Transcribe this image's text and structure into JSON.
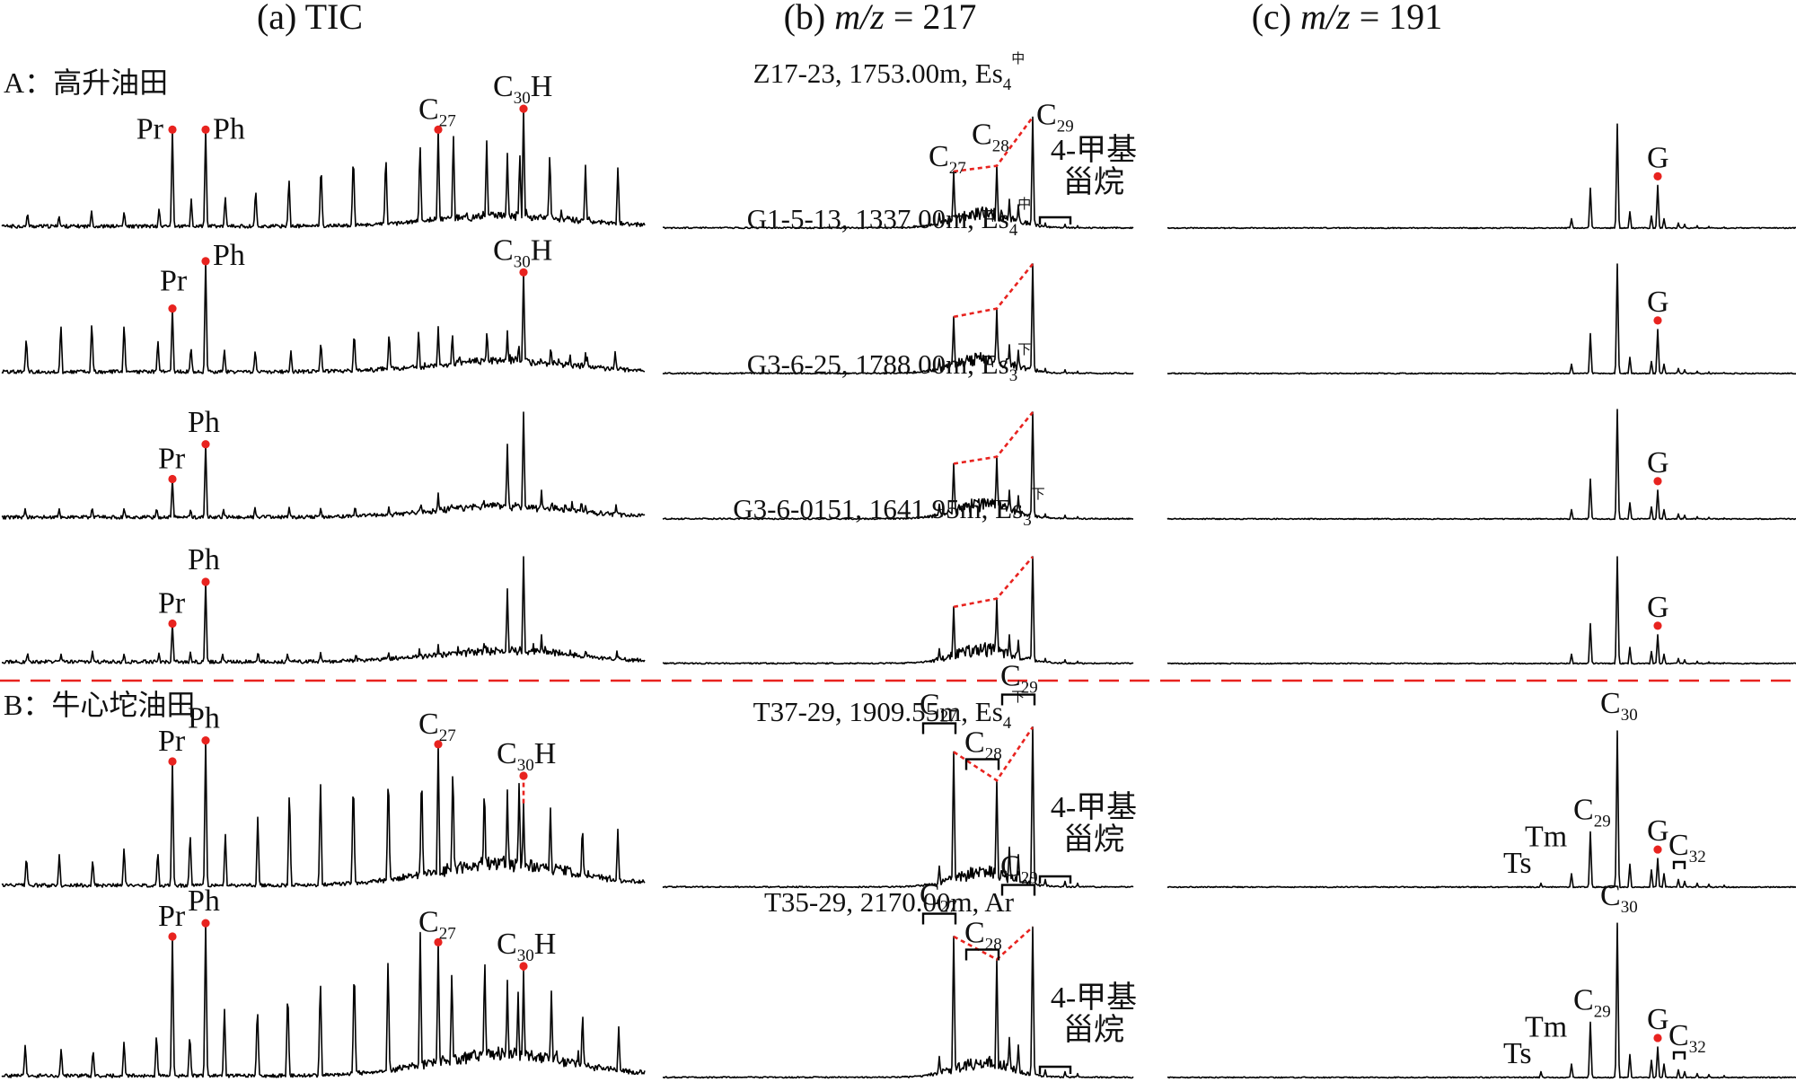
{
  "chart_data": {
    "type": "line",
    "panels": [
      {
        "id": "a",
        "label_prefix": "(a) ",
        "label_main": "TIC",
        "label_suffix": ""
      },
      {
        "id": "b",
        "label_prefix": "(b) ",
        "label_main": "m/z",
        "label_suffix": " = 217"
      },
      {
        "id": "c",
        "label_prefix": "(c) ",
        "label_main": "m/z",
        "label_suffix": " = 191"
      }
    ],
    "sections": [
      {
        "id": "A",
        "label": "A：高升油田"
      },
      {
        "id": "B",
        "label": "B：牛心坨油田"
      }
    ],
    "peak_labels": {
      "Pr": "Pr",
      "Ph": "Ph",
      "C": "C",
      "H": "H",
      "G": "G",
      "Ts": "Ts",
      "Tm": "Tm",
      "n27": "27",
      "n28": "28",
      "n29": "29",
      "n30": "30",
      "n32": "32",
      "methyl_line1": "4-甲基",
      "methyl_line2": "甾烷"
    },
    "samples": [
      {
        "section": "A",
        "well": "Z17-23",
        "depth": "1753.00m",
        "fm": "Es",
        "fm_sub": "4",
        "fm_sup": "中",
        "TIC": {
          "Pr": 0.72,
          "Ph": 0.72,
          "C27": 0.72,
          "C30H": 0.87
        },
        "m217": {
          "C27": 0.42,
          "C28": 0.46,
          "C29": 0.81
        },
        "m191": {
          "G": 0.32,
          "C30": 0.76
        }
      },
      {
        "section": "A",
        "well": "G1-5-13",
        "depth": "1337.00m",
        "fm": "Es",
        "fm_sub": "4",
        "fm_sup": "中",
        "TIC": {
          "Pr": 0.48,
          "Ph": 0.82,
          "C27": 0.35,
          "C30H": 0.74
        },
        "m217": {
          "C27": 0.42,
          "C28": 0.48,
          "C29": 0.8
        },
        "m191": {
          "G": 0.33,
          "C30": 0.8
        }
      },
      {
        "section": "A",
        "well": "G3-6-25",
        "depth": "1788.00m",
        "fm": "Es",
        "fm_sub": "3",
        "fm_sup": "下",
        "TIC": {
          "Pr": 0.3,
          "Ph": 0.55,
          "C27": 0.2,
          "C30H": 0.78
        },
        "m217": {
          "C27": 0.41,
          "C28": 0.46,
          "C29": 0.78
        },
        "m191": {
          "G": 0.22,
          "C30": 0.8
        }
      },
      {
        "section": "A",
        "well": "G3-6-0151",
        "depth": "1641.95m",
        "fm": "Es",
        "fm_sub": "3",
        "fm_sup": "下",
        "TIC": {
          "Pr": 0.3,
          "Ph": 0.6,
          "C27": 0.15,
          "C30H": 0.78
        },
        "m217": {
          "C27": 0.42,
          "C28": 0.48,
          "C29": 0.78
        },
        "m191": {
          "G": 0.22,
          "C30": 0.78
        }
      },
      {
        "section": "B",
        "well": "T37-29",
        "depth": "1909.55m",
        "fm": "Es",
        "fm_sub": "4",
        "fm_sup": "下",
        "TIC": {
          "Pr": 0.67,
          "Ph": 0.78,
          "C27": 0.76,
          "C30H": 0.45
        },
        "m217": {
          "C27": 0.72,
          "C28": 0.57,
          "C29": 0.85
        },
        "m191": {
          "G": 0.16,
          "C30": 0.83,
          "Ts": 0.03,
          "Tm": 0.08,
          "C29": 0.3
        }
      },
      {
        "section": "B",
        "well": "T35-29",
        "depth": "2170.00m",
        "fm": "Ar",
        "fm_sub": "",
        "fm_sup": "",
        "TIC": {
          "Pr": 0.75,
          "Ph": 0.82,
          "C27": 0.72,
          "C30H": 0.57
        },
        "m217": {
          "C27": 0.75,
          "C28": 0.63,
          "C29": 0.8
        },
        "m191": {
          "G": 0.17,
          "C30": 0.82,
          "Ts": 0.04,
          "Tm": 0.08,
          "C29": 0.3
        }
      }
    ]
  }
}
